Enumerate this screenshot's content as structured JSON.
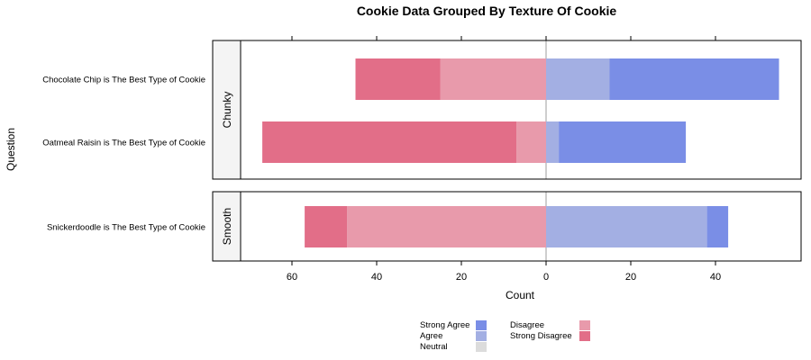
{
  "chart_data": {
    "type": "bar",
    "subtype": "diverging-stacked-horizontal",
    "title": "Cookie Data Grouped By Texture Of Cookie",
    "xlabel": "Count",
    "ylabel": "Question",
    "xlim": [
      -70,
      58
    ],
    "x_ticks": [
      -60,
      -40,
      -20,
      0,
      20,
      40
    ],
    "x_tick_labels": [
      "60",
      "40",
      "20",
      "0",
      "20",
      "40"
    ],
    "legend_position": "bottom",
    "legend": [
      {
        "key": "strong_agree",
        "label": "Strong Agree",
        "color": "#7a8ee6"
      },
      {
        "key": "agree",
        "label": "Agree",
        "color": "#a3afe3"
      },
      {
        "key": "neutral",
        "label": "Neutral",
        "color": "#dcdcdc"
      },
      {
        "key": "disagree",
        "label": "Disagree",
        "color": "#e89aab"
      },
      {
        "key": "strong_disagree",
        "label": "Strong Disagree",
        "color": "#e26e88"
      }
    ],
    "panels": [
      {
        "strip": "Chunky",
        "rows": [
          {
            "question": "Chocolate Chip is The Best Type of Cookie",
            "strong_disagree": 20,
            "disagree": 25,
            "neutral": 0,
            "agree": 15,
            "strong_agree": 40
          },
          {
            "question": "Oatmeal Raisin is The Best Type of Cookie",
            "strong_disagree": 60,
            "disagree": 7,
            "neutral": 0,
            "agree": 3,
            "strong_agree": 30
          }
        ]
      },
      {
        "strip": "Smooth",
        "rows": [
          {
            "question": "Snickerdoodle is The Best Type of Cookie",
            "strong_disagree": 10,
            "disagree": 47,
            "neutral": 0,
            "agree": 38,
            "strong_agree": 5
          }
        ]
      }
    ]
  }
}
